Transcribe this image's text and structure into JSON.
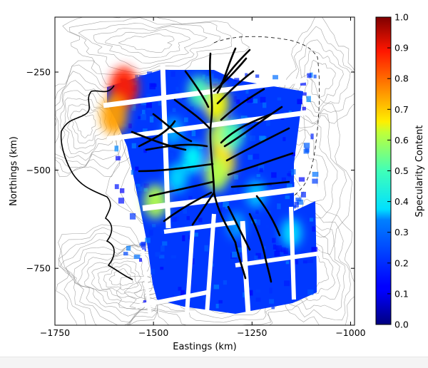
{
  "chart_data": {
    "type": "heatmap",
    "title": "",
    "xlabel": "Eastings (km)",
    "ylabel": "Northings (km)",
    "xlim": [
      -1750,
      -990
    ],
    "ylim": [
      -895,
      -110
    ],
    "x_ticks": [
      -1750,
      -1500,
      -1250,
      -1000
    ],
    "y_ticks": [
      -250,
      -500,
      -750
    ],
    "x_tick_labels": [
      "−1750",
      "−1500",
      "−1250",
      "−1000"
    ],
    "y_tick_labels": [
      "−250",
      "−500",
      "−750"
    ],
    "colorbar": {
      "label": "Specularity Content",
      "range": [
        0.0,
        1.0
      ],
      "ticks": [
        0.0,
        0.1,
        0.2,
        0.3,
        0.4,
        0.5,
        0.6,
        0.7,
        0.8,
        0.9,
        1.0
      ],
      "tick_labels": [
        "0.0",
        "0.1",
        "0.2",
        "0.3",
        "0.4",
        "0.5",
        "0.6",
        "0.7",
        "0.8",
        "0.9",
        "1.0"
      ],
      "colormap": "jet",
      "position": "right"
    },
    "specularity_patches": [
      {
        "x": -1340,
        "y": -330,
        "value": 0.62
      },
      {
        "x": -1330,
        "y": -420,
        "value": 0.58
      },
      {
        "x": -1325,
        "y": -480,
        "value": 0.65
      },
      {
        "x": -1340,
        "y": -510,
        "value": 0.55
      },
      {
        "x": -1300,
        "y": -410,
        "value": 0.45
      },
      {
        "x": -1400,
        "y": -470,
        "value": 0.38
      },
      {
        "x": -1440,
        "y": -520,
        "value": 0.34
      },
      {
        "x": -1575,
        "y": -290,
        "value": 0.85
      },
      {
        "x": -1600,
        "y": -360,
        "value": 0.72
      },
      {
        "x": -1495,
        "y": -580,
        "value": 0.55
      },
      {
        "x": -1385,
        "y": -300,
        "value": 0.45
      },
      {
        "x": -1240,
        "y": -560,
        "value": 0.32
      },
      {
        "x": -1450,
        "y": -400,
        "value": 0.3
      },
      {
        "x": -1290,
        "y": -640,
        "value": 0.28
      },
      {
        "x": -1150,
        "y": -660,
        "value": 0.35
      }
    ],
    "background_value": 0.18,
    "grid": false
  }
}
